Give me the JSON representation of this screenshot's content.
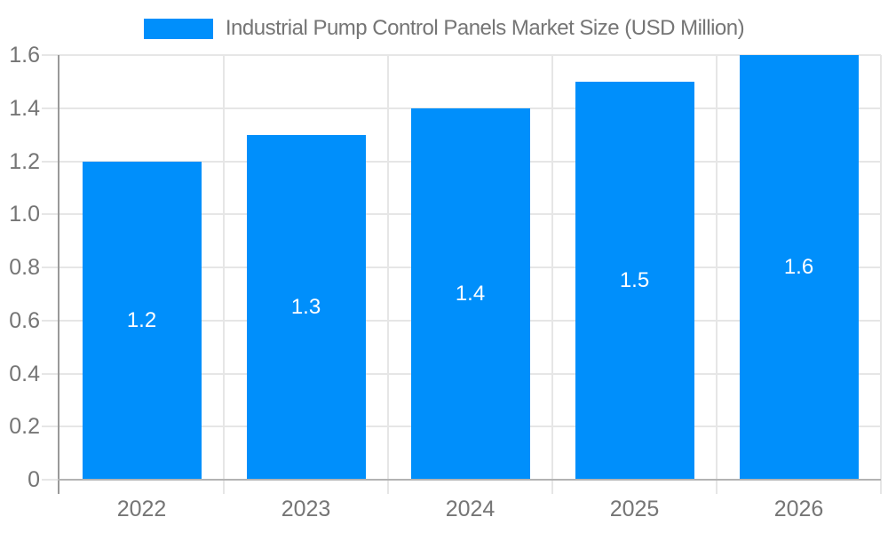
{
  "legend": {
    "label": "Industrial Pump Control Panels Market Size (USD Million)",
    "swatch_color": "#008FFB"
  },
  "chart_data": {
    "type": "bar",
    "title": "Industrial Pump Control Panels Market Size (USD Million)",
    "categories": [
      "2022",
      "2023",
      "2024",
      "2025",
      "2026"
    ],
    "series": [
      {
        "name": "Industrial Pump Control Panels Market Size (USD Million)",
        "values": [
          1.2,
          1.3,
          1.4,
          1.5,
          1.6
        ],
        "data_labels": [
          "1.2",
          "1.3",
          "1.4",
          "1.5",
          "1.6"
        ],
        "color": "#008FFB"
      }
    ],
    "xlabel": "",
    "ylabel": "",
    "ylim": [
      0,
      1.6
    ],
    "y_tick_step": 0.2,
    "y_tick_labels": [
      "0",
      "0.2",
      "0.4",
      "0.6",
      "0.8",
      "1.0",
      "1.2",
      "1.4",
      "1.6"
    ],
    "grid": true,
    "legend_position": "top",
    "colors": {
      "bar": "#008FFB",
      "gridline": "#e6e6e6",
      "y_axis_line": "#999999",
      "x_axis_line": "#b3b3b3",
      "tick_label": "#757575",
      "bar_label": "#ffffff",
      "legend_text": "#757575",
      "background": "#ffffff"
    }
  }
}
